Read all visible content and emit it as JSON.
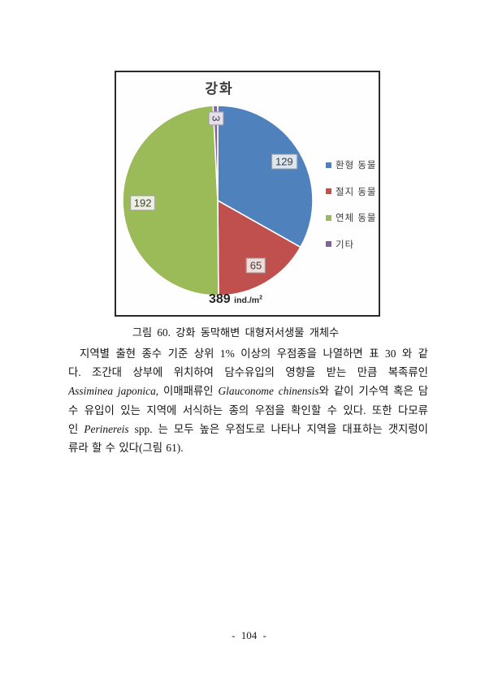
{
  "page": {
    "number": "- 104 -"
  },
  "figure": {
    "caption": "그림 60. 강화 동막해변 대형저서생물 개체수"
  },
  "chart_data": {
    "type": "pie",
    "title": "강화",
    "categories": [
      "환형 동물",
      "절지 동물",
      "연체 동물",
      "기타"
    ],
    "values": [
      129,
      65,
      192,
      3
    ],
    "total": 389,
    "colors": [
      "#4f81bd",
      "#c0504d",
      "#9bbb59",
      "#8064a2"
    ],
    "label_fills": [
      "#dce6f2",
      "#f2dcdb",
      "#ebf1de",
      "#e4dfec"
    ],
    "label_radius_frac": [
      0.81,
      0.79,
      0.79,
      0.86
    ],
    "rotate_label_under_pct": 2,
    "start_angle_deg": 0,
    "direction": "clockwise",
    "legend_position": "right",
    "total_label": {
      "value": "389",
      "unit": "ind./m",
      "sup": "2"
    }
  },
  "paragraph": {
    "lines": [
      {
        "justify": true,
        "indent": true,
        "segments": [
          {
            "t": "지역별 출현 종수 기준 상위 1% 이상의 우점종을 나열하면 표 30 와 같"
          }
        ]
      },
      {
        "justify": true,
        "segments": [
          {
            "t": "다. 조간대 상부에 위치하여 담수유입의 영향을 받는 만큼 복족류인"
          }
        ]
      },
      {
        "justify": true,
        "segments": [
          {
            "t": "Assiminea japonica,",
            "i": true
          },
          {
            "t": " 이매패류인 "
          },
          {
            "t": "Glauconome chinensis",
            "i": true
          },
          {
            "t": "와 같이 기수역 혹은 담"
          }
        ]
      },
      {
        "justify": true,
        "segments": [
          {
            "t": "수 유입이 있는 지역에 서식하는 종의 우점을 확인할 수 있다. 또한 다모류"
          }
        ]
      },
      {
        "justify": true,
        "segments": [
          {
            "t": "인 "
          },
          {
            "t": "Perinereis",
            "i": true
          },
          {
            "t": " spp. 는 모두 높은 우점도로 나타나 지역을 대표하는 갯지렁이"
          }
        ]
      },
      {
        "justify": false,
        "segments": [
          {
            "t": "류라 할 수 있다(그림 61)."
          }
        ]
      }
    ]
  }
}
